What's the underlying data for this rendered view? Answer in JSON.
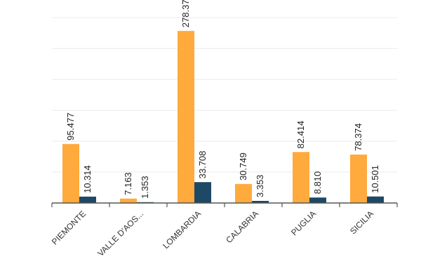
{
  "chart_data": {
    "type": "bar",
    "categories": [
      "PIEMONTE",
      "VALLE D'AOS...",
      "LOMBARDIA",
      "CALABRIA",
      "PUGLIA",
      "SICILIA"
    ],
    "series": [
      {
        "values": [
          95.477,
          7.163,
          278.37,
          30.749,
          82.414,
          78.374
        ],
        "labels": [
          "95.477",
          "7.163",
          "278.37",
          "30.749",
          "82.414",
          "78.374"
        ],
        "color": "#FFAA3C"
      },
      {
        "values": [
          10.314,
          1.353,
          33.708,
          3.353,
          8.81,
          10.501
        ],
        "labels": [
          "10.314",
          "1.353",
          "33.708",
          "3.353",
          "8.810",
          "10.501"
        ],
        "color": "#1D4866"
      }
    ],
    "ylim": [
      0,
      300
    ],
    "grid": true,
    "legend": "none",
    "title": "",
    "xlabel": "",
    "ylabel": ""
  }
}
